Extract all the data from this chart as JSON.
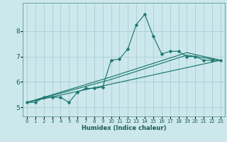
{
  "xlabel": "Humidex (Indice chaleur)",
  "background_color": "#cce8ed",
  "line_color": "#1d7870",
  "grid_color": "#aacdd4",
  "xlim": [
    -0.5,
    23.5
  ],
  "ylim": [
    4.65,
    9.1
  ],
  "yticks": [
    5,
    6,
    7,
    8
  ],
  "xticks": [
    0,
    1,
    2,
    3,
    4,
    5,
    6,
    7,
    8,
    9,
    10,
    11,
    12,
    13,
    14,
    15,
    16,
    17,
    18,
    19,
    20,
    21,
    22,
    23
  ],
  "main_series": {
    "x": [
      0,
      1,
      2,
      3,
      4,
      5,
      6,
      7,
      8,
      9,
      10,
      11,
      12,
      13,
      14,
      15,
      16,
      17,
      18,
      19,
      20,
      21,
      22,
      23
    ],
    "y": [
      5.2,
      5.2,
      5.4,
      5.4,
      5.4,
      5.2,
      5.6,
      5.75,
      5.75,
      5.8,
      6.85,
      6.9,
      7.3,
      8.25,
      8.65,
      7.8,
      7.1,
      7.2,
      7.2,
      7.0,
      7.0,
      6.85,
      6.85,
      6.85
    ]
  },
  "trend_lines": [
    {
      "x": [
        0,
        23
      ],
      "y": [
        5.2,
        6.85
      ]
    },
    {
      "x": [
        0,
        10,
        19,
        23
      ],
      "y": [
        5.2,
        6.1,
        7.05,
        6.85
      ]
    },
    {
      "x": [
        0,
        10,
        19,
        23
      ],
      "y": [
        5.2,
        6.2,
        7.15,
        6.85
      ]
    }
  ]
}
